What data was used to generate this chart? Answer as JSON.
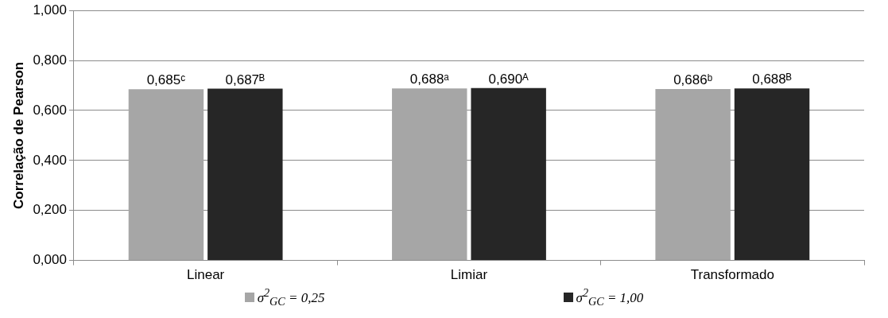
{
  "chart_data": {
    "type": "bar",
    "ylabel": "Correlação de Pearson",
    "categories": [
      "Linear",
      "Limiar",
      "Transformado"
    ],
    "series": [
      {
        "name": "σ$^{2}$$_{GC}$ = 0,25",
        "color": "#a6a6a6",
        "values": [
          0.685,
          0.688,
          0.686
        ],
        "value_labels": [
          "0,685ᶜ",
          "0,688ᵃ",
          "0,686ᵇ"
        ]
      },
      {
        "name": "σ$^{2}$$_{GC}$ = 1,00",
        "color": "#262626",
        "values": [
          0.687,
          0.69,
          0.688
        ],
        "value_labels": [
          "0,687ᴮ",
          "0,690ᴬ",
          "0,688ᴮ"
        ]
      }
    ],
    "ylim": [
      0,
      1
    ],
    "yticks": [
      {
        "value": 0,
        "label": "0,000"
      },
      {
        "value": 0.2,
        "label": "0,200"
      },
      {
        "value": 0.4,
        "label": "0,400"
      },
      {
        "value": 0.6,
        "label": "0,600"
      },
      {
        "value": 0.8,
        "label": "0,800"
      },
      {
        "value": 1,
        "label": "1,000"
      }
    ],
    "grid": "y",
    "legend": "bottom"
  }
}
